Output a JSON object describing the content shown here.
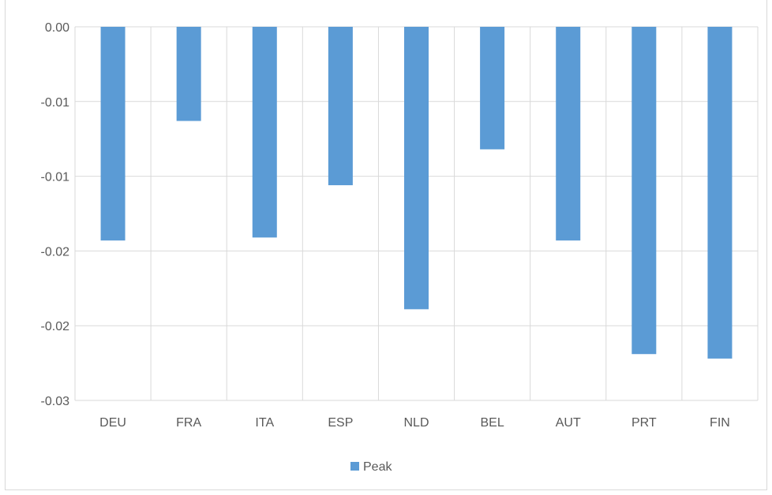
{
  "chart_data": {
    "type": "bar",
    "categories": [
      "DEU",
      "FRA",
      "ITA",
      "ESP",
      "NLD",
      "BEL",
      "AUT",
      "PRT",
      "FIN"
    ],
    "series": [
      {
        "name": "Peak",
        "color": "#5b9bd5",
        "values": [
          -0.0143,
          -0.0063,
          -0.0141,
          -0.0106,
          -0.0189,
          -0.0082,
          -0.0143,
          -0.0219,
          -0.0222
        ]
      }
    ],
    "y_ticks": [
      "0.00",
      "-0.01",
      "-0.01",
      "-0.02",
      "-0.02",
      "-0.03"
    ],
    "y_tick_values": [
      0,
      -0.005,
      -0.01,
      -0.015,
      -0.02,
      -0.025
    ],
    "ylim": [
      -0.025,
      0
    ],
    "grid": true,
    "legend_position": "bottom",
    "legend_label": "Peak"
  }
}
